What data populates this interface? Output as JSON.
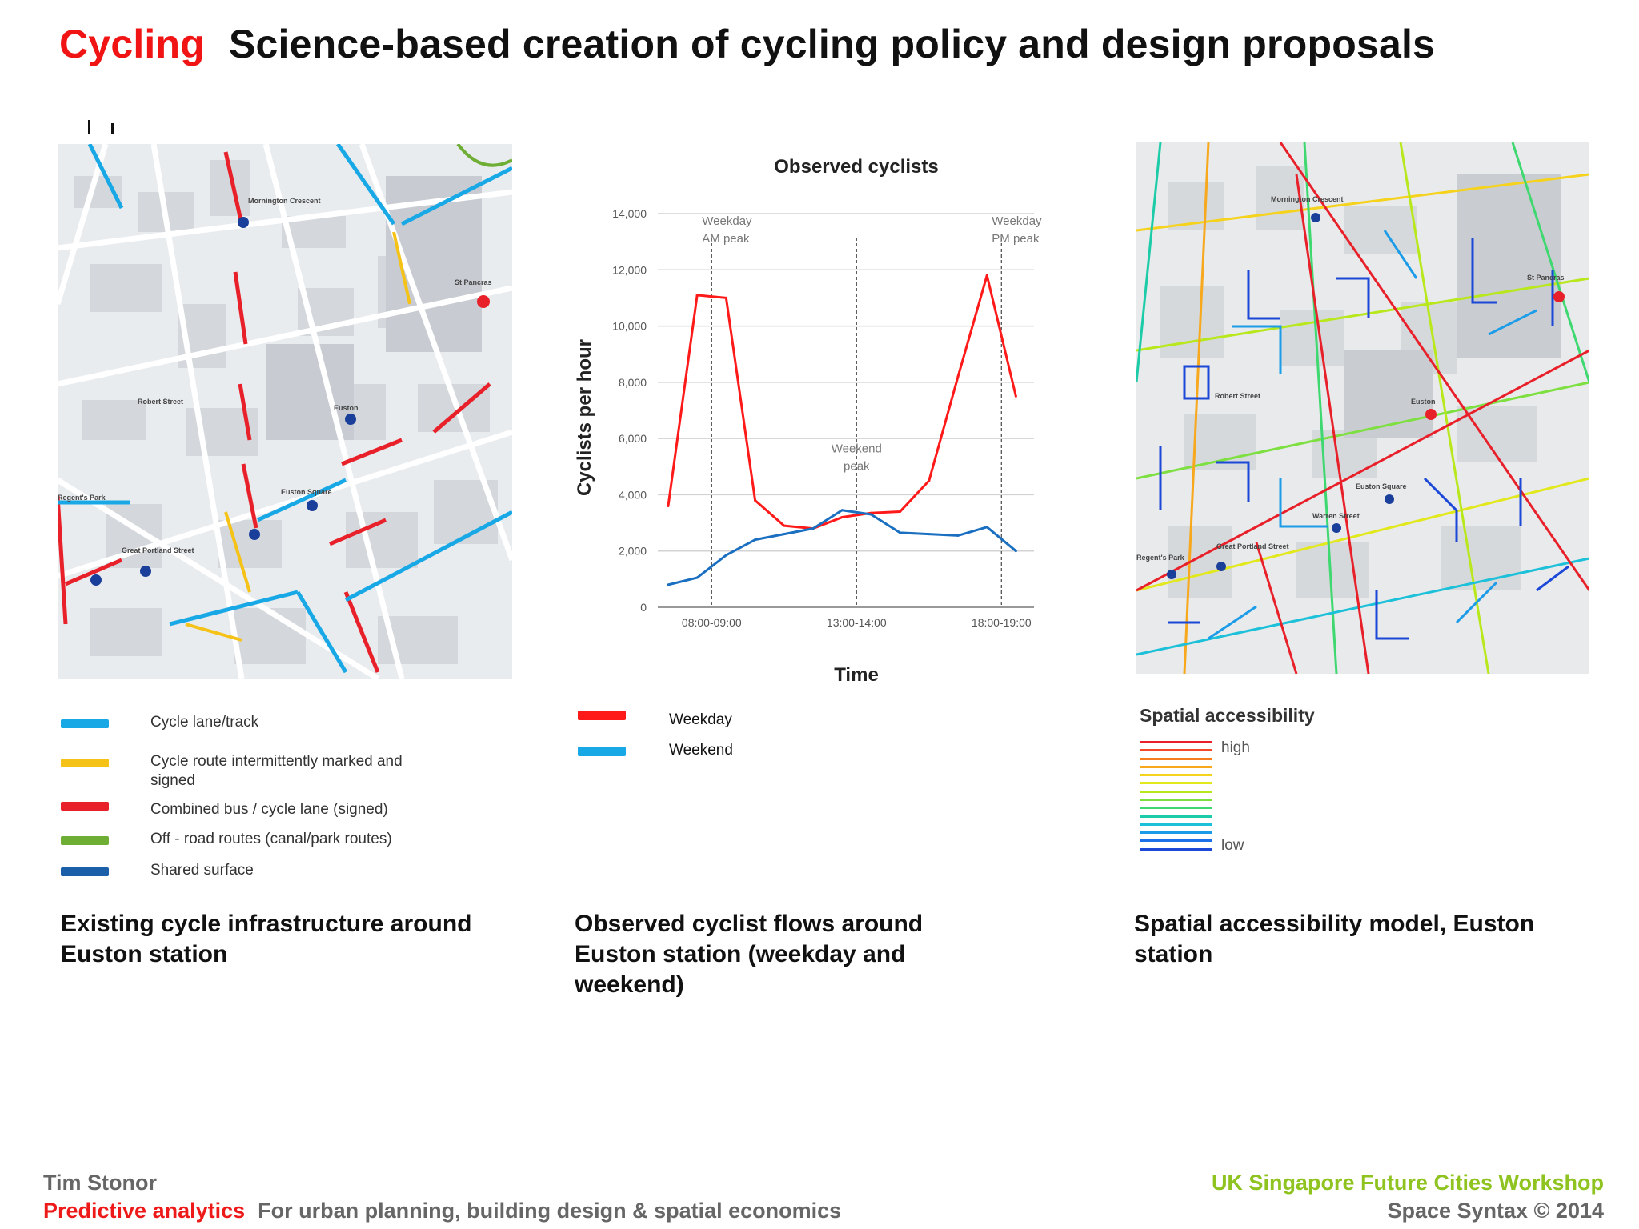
{
  "header": {
    "keyword": "Cycling",
    "title": "Science-based creation of cycling policy and design proposals"
  },
  "left_panel": {
    "map_labels": [
      "Mornington Crescent",
      "St Pancras",
      "Euston",
      "Euston Square",
      "Great Portland Street",
      "Regent's Park",
      "Robert Street"
    ],
    "legend": [
      {
        "label": "Cycle lane/track",
        "color": "#19a8e6"
      },
      {
        "label": "Cycle route intermittently  marked and signed",
        "color": "#f5c218"
      },
      {
        "label": "Combined bus / cycle  lane  (signed)",
        "color": "#e8202a"
      },
      {
        "label": "Off - road routes (canal/park routes)",
        "color": "#6fae35"
      },
      {
        "label": "Shared surface",
        "color": "#1a5fa8"
      }
    ],
    "caption": "Existing cycle infrastructure around Euston station"
  },
  "middle_panel": {
    "legend": [
      {
        "label": "Weekday",
        "color": "#ff1a1a"
      },
      {
        "label": "Weekend",
        "color": "#19a8e6"
      }
    ],
    "caption": "Observed cyclist flows around Euston station (weekday and weekend)"
  },
  "right_panel": {
    "legend_title": "Spatial  accessibility",
    "high_label": "high",
    "low_label": "low",
    "scale_colors": [
      "#e8202a",
      "#f04a2a",
      "#f57c20",
      "#f7a81c",
      "#f5d21c",
      "#e2e81c",
      "#b8e81c",
      "#7ee040",
      "#3fd870",
      "#1ccca8",
      "#1cc0d8",
      "#1c9ce8",
      "#1c70e8",
      "#1c48d8"
    ],
    "map_labels": [
      "Mornington Crescent",
      "St Pancras",
      "Euston",
      "Euston Square",
      "Warren Street",
      "Great Portland Street",
      "Regent's Park",
      "Robert Street"
    ],
    "caption": "Spatial accessibility model, Euston station"
  },
  "chart_data": {
    "type": "line",
    "title": "Observed cyclists",
    "xlabel": "Time",
    "ylabel": "Cyclists per hour",
    "ylim": [
      0,
      14000
    ],
    "yticks": [
      0,
      2000,
      4000,
      6000,
      8000,
      10000,
      12000,
      14000
    ],
    "ytick_labels": [
      "0",
      "2,000",
      "4,000",
      "6,000",
      "8,000",
      "10,000",
      "12,000",
      "14,000"
    ],
    "x_tick_labels": [
      {
        "index": 1.5,
        "label": "08:00-09:00"
      },
      {
        "index": 6.5,
        "label": "13:00-14:00"
      },
      {
        "index": 11.5,
        "label": "18:00-19:00"
      }
    ],
    "annotations": [
      {
        "index": 1.5,
        "label": [
          "Weekday",
          "AM peak"
        ],
        "align": "left"
      },
      {
        "index": 6.5,
        "label": [
          "Weekend",
          "peak"
        ],
        "align": "center"
      },
      {
        "index": 11.5,
        "label": [
          "Weekday",
          "PM peak"
        ],
        "align": "left"
      }
    ],
    "grid": true,
    "series": [
      {
        "name": "Weekday",
        "color": "#ff1a1a",
        "values": [
          3600,
          11100,
          11000,
          3800,
          2900,
          2800,
          3200,
          3350,
          3400,
          4500,
          8200,
          11800,
          7500
        ]
      },
      {
        "name": "Weekend",
        "color": "#1a6fc0",
        "values": [
          800,
          1050,
          1850,
          2400,
          2600,
          2800,
          3450,
          3300,
          2650,
          2600,
          2550,
          2850,
          2000
        ]
      }
    ]
  },
  "footer": {
    "author": "Tim Stonor",
    "predictive": "Predictive analytics",
    "tagline": "For urban planning, building design & spatial economics",
    "event": "UK Singapore Future Cities Workshop",
    "copyright": "Space Syntax ©  2014"
  }
}
